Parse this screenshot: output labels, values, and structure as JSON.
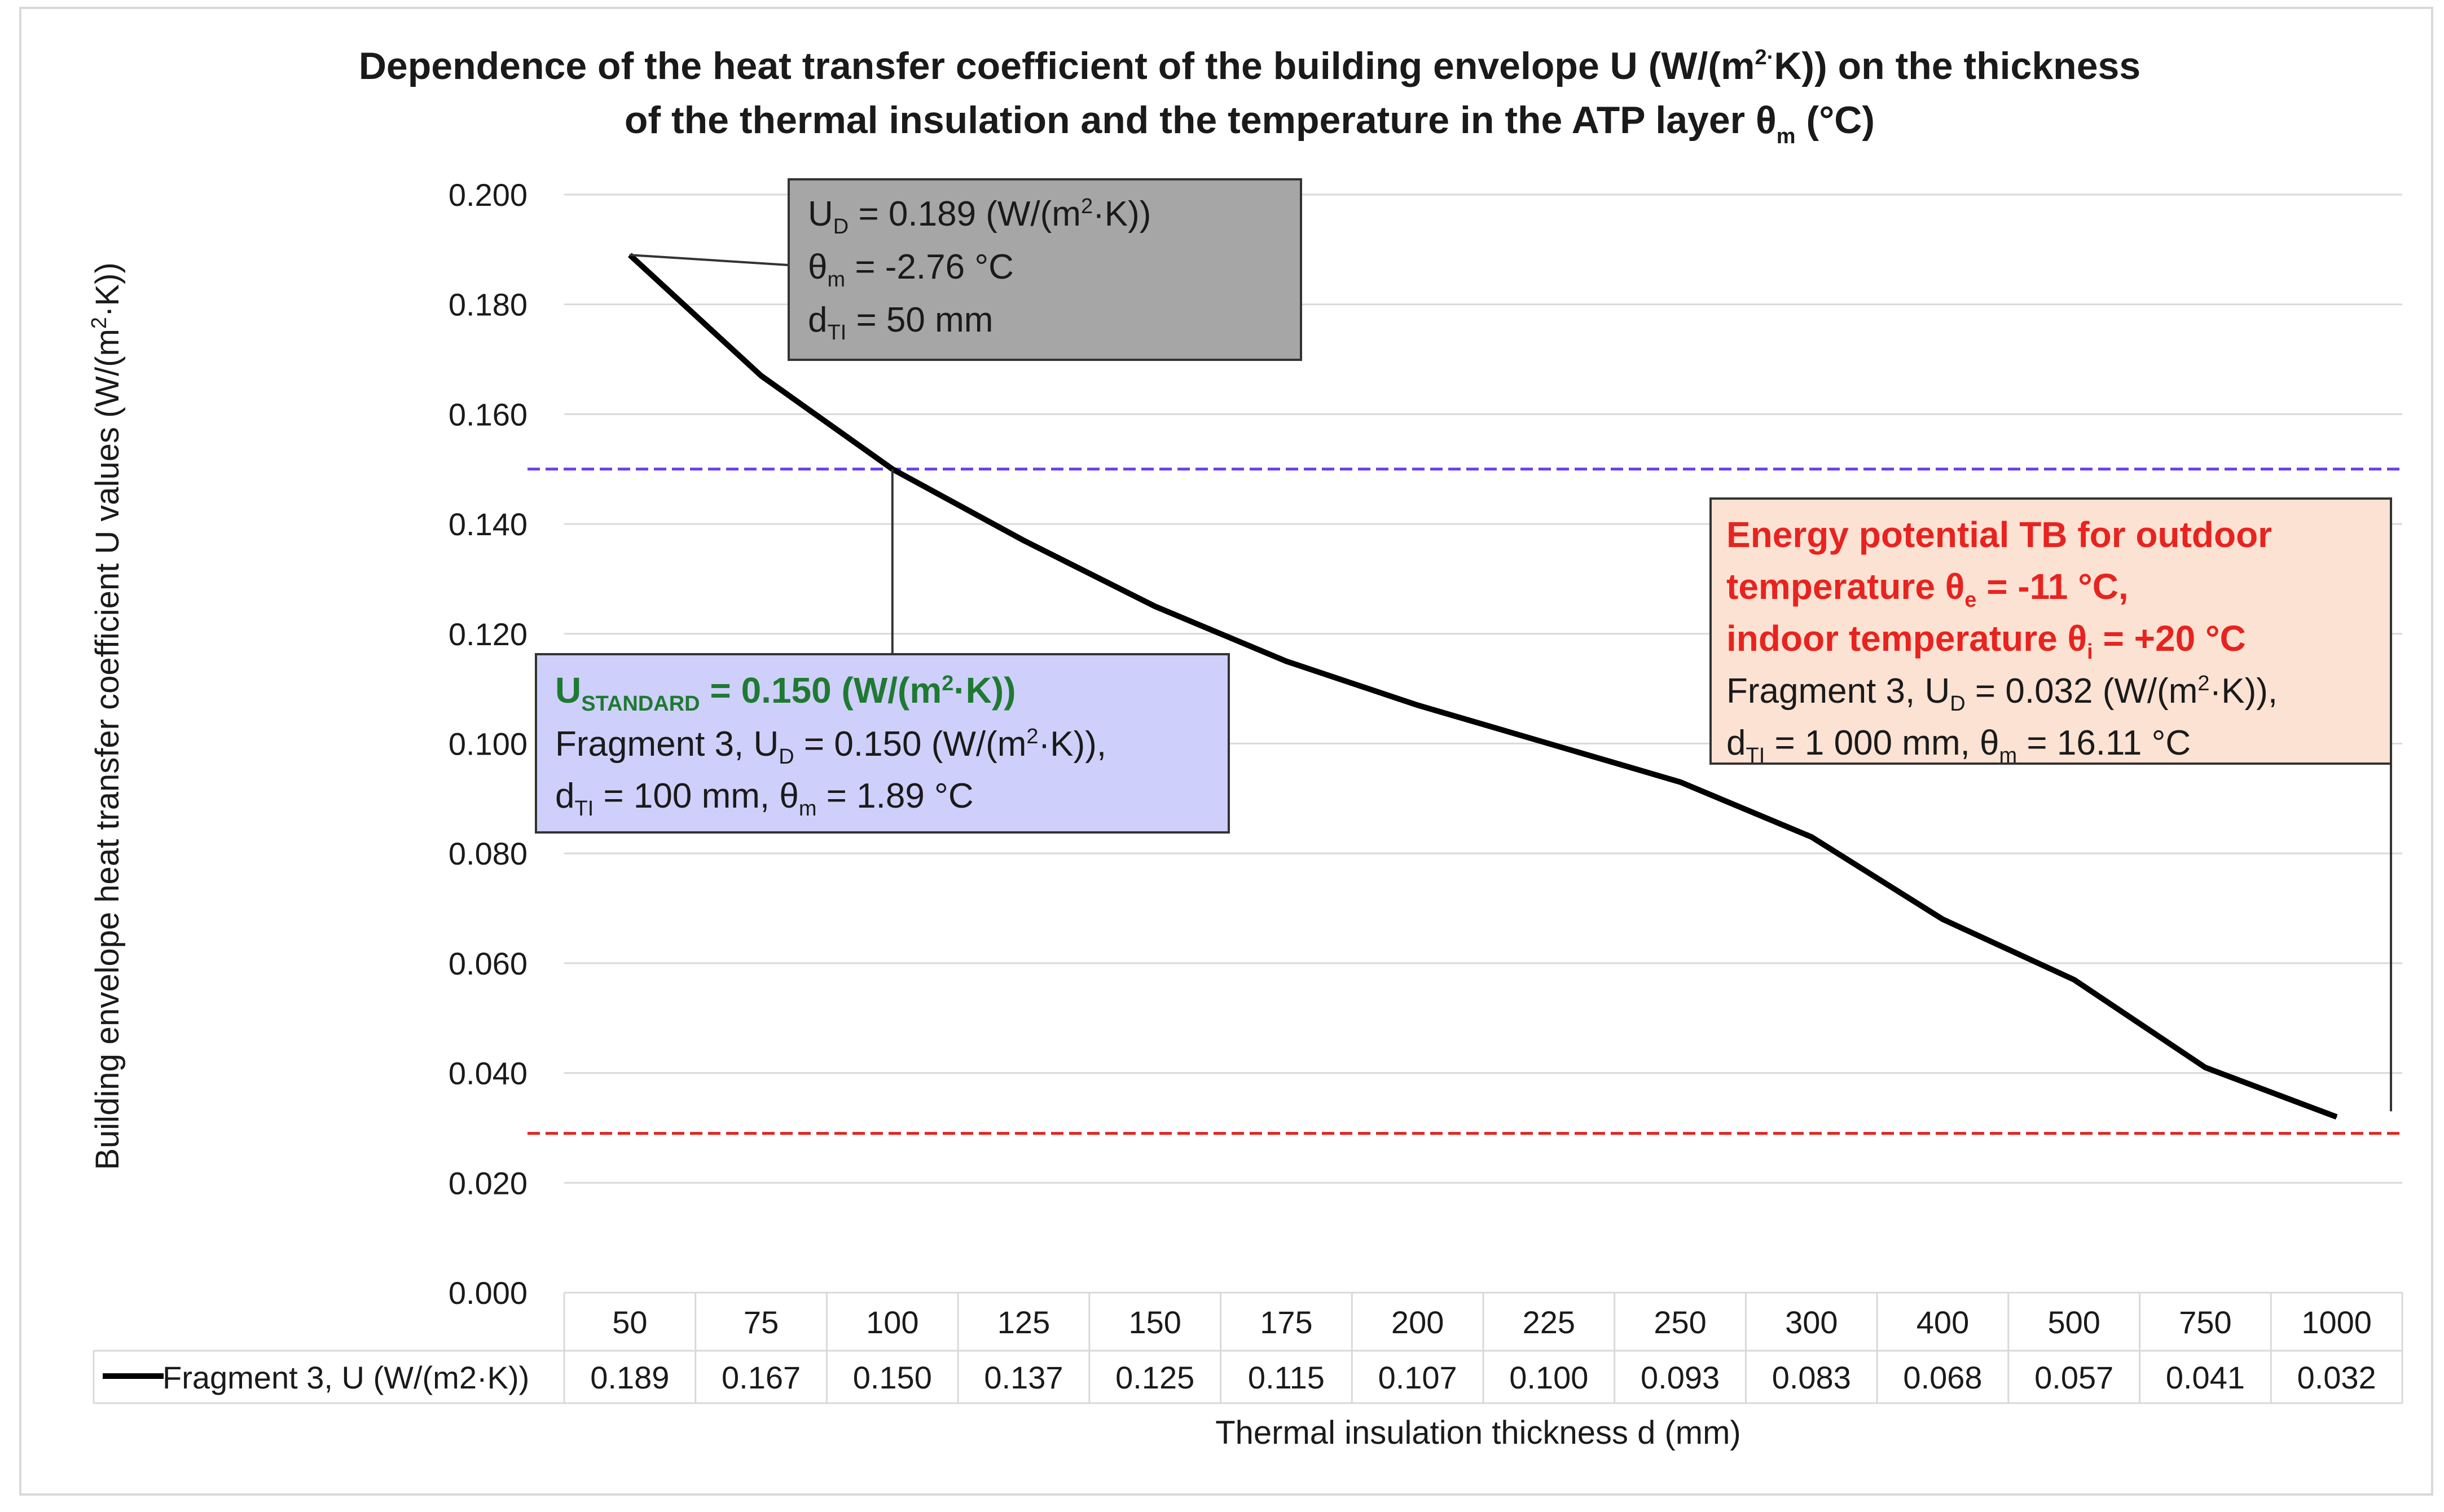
{
  "chart_data": {
    "type": "line",
    "title_line1": "Dependence of the heat transfer coefficient of the building envelope U (W/(m2·K)) on the thickness",
    "title_line2": "of the thermal insulation and the temperature in the ATP layer θm (°C)",
    "ylabel": "Building envelope heat transfer coefficient U values (W/(m2·K))",
    "xlabel": "Thermal insulation thickness d (mm)",
    "ylim": [
      0,
      0.2
    ],
    "yticks": [
      "0.000",
      "0.020",
      "0.040",
      "0.060",
      "0.080",
      "0.100",
      "0.120",
      "0.140",
      "0.160",
      "0.180",
      "0.200"
    ],
    "categories": [
      "50",
      "75",
      "100",
      "125",
      "150",
      "175",
      "200",
      "225",
      "250",
      "300",
      "400",
      "500",
      "750",
      "1000"
    ],
    "series": [
      {
        "name": "Fragment 3, U (W/(m2·K))",
        "color": "#000000",
        "values": [
          0.189,
          0.167,
          0.15,
          0.137,
          0.125,
          0.115,
          0.107,
          0.1,
          0.093,
          0.083,
          0.068,
          0.057,
          0.041,
          0.032
        ],
        "labels": [
          "0.189",
          "0.167",
          "0.150",
          "0.137",
          "0.125",
          "0.115",
          "0.107",
          "0.100",
          "0.093",
          "0.083",
          "0.068",
          "0.057",
          "0.041",
          "0.032"
        ]
      }
    ],
    "reference_lines": [
      {
        "name": "U standard",
        "value": 0.15,
        "color": "#6a3df0"
      },
      {
        "name": "Energy potential TB",
        "value": 0.029,
        "color": "#e8231f"
      }
    ],
    "grid": true,
    "legend": "data-table"
  },
  "annotations": {
    "top": {
      "line1": "UD = 0.189 (W/(m2·K))",
      "line2": "θm = -2.76 °C",
      "line3": "dTI = 50 mm",
      "bg": "#a6a6a6"
    },
    "standard": {
      "line1": "USTANDARD = 0.150 (W/(m2·K))",
      "line2": "Fragment 3, UD = 0.150 (W/(m2·K)),",
      "line3": "dTI = 100 mm, θm = 1.89 °C",
      "bg": "#cfcffb"
    },
    "energy": {
      "line1": "Energy potential TB for outdoor",
      "line2": "temperature θe = -11 °C,",
      "line3": "indoor temperature θi = +20 °C",
      "line4": "Fragment 3, UD = 0.032 (W/(m2·K)),",
      "line5": "dTI = 1 000 mm, θm = 16.11 °C",
      "bg": "#fbe2d3"
    }
  }
}
